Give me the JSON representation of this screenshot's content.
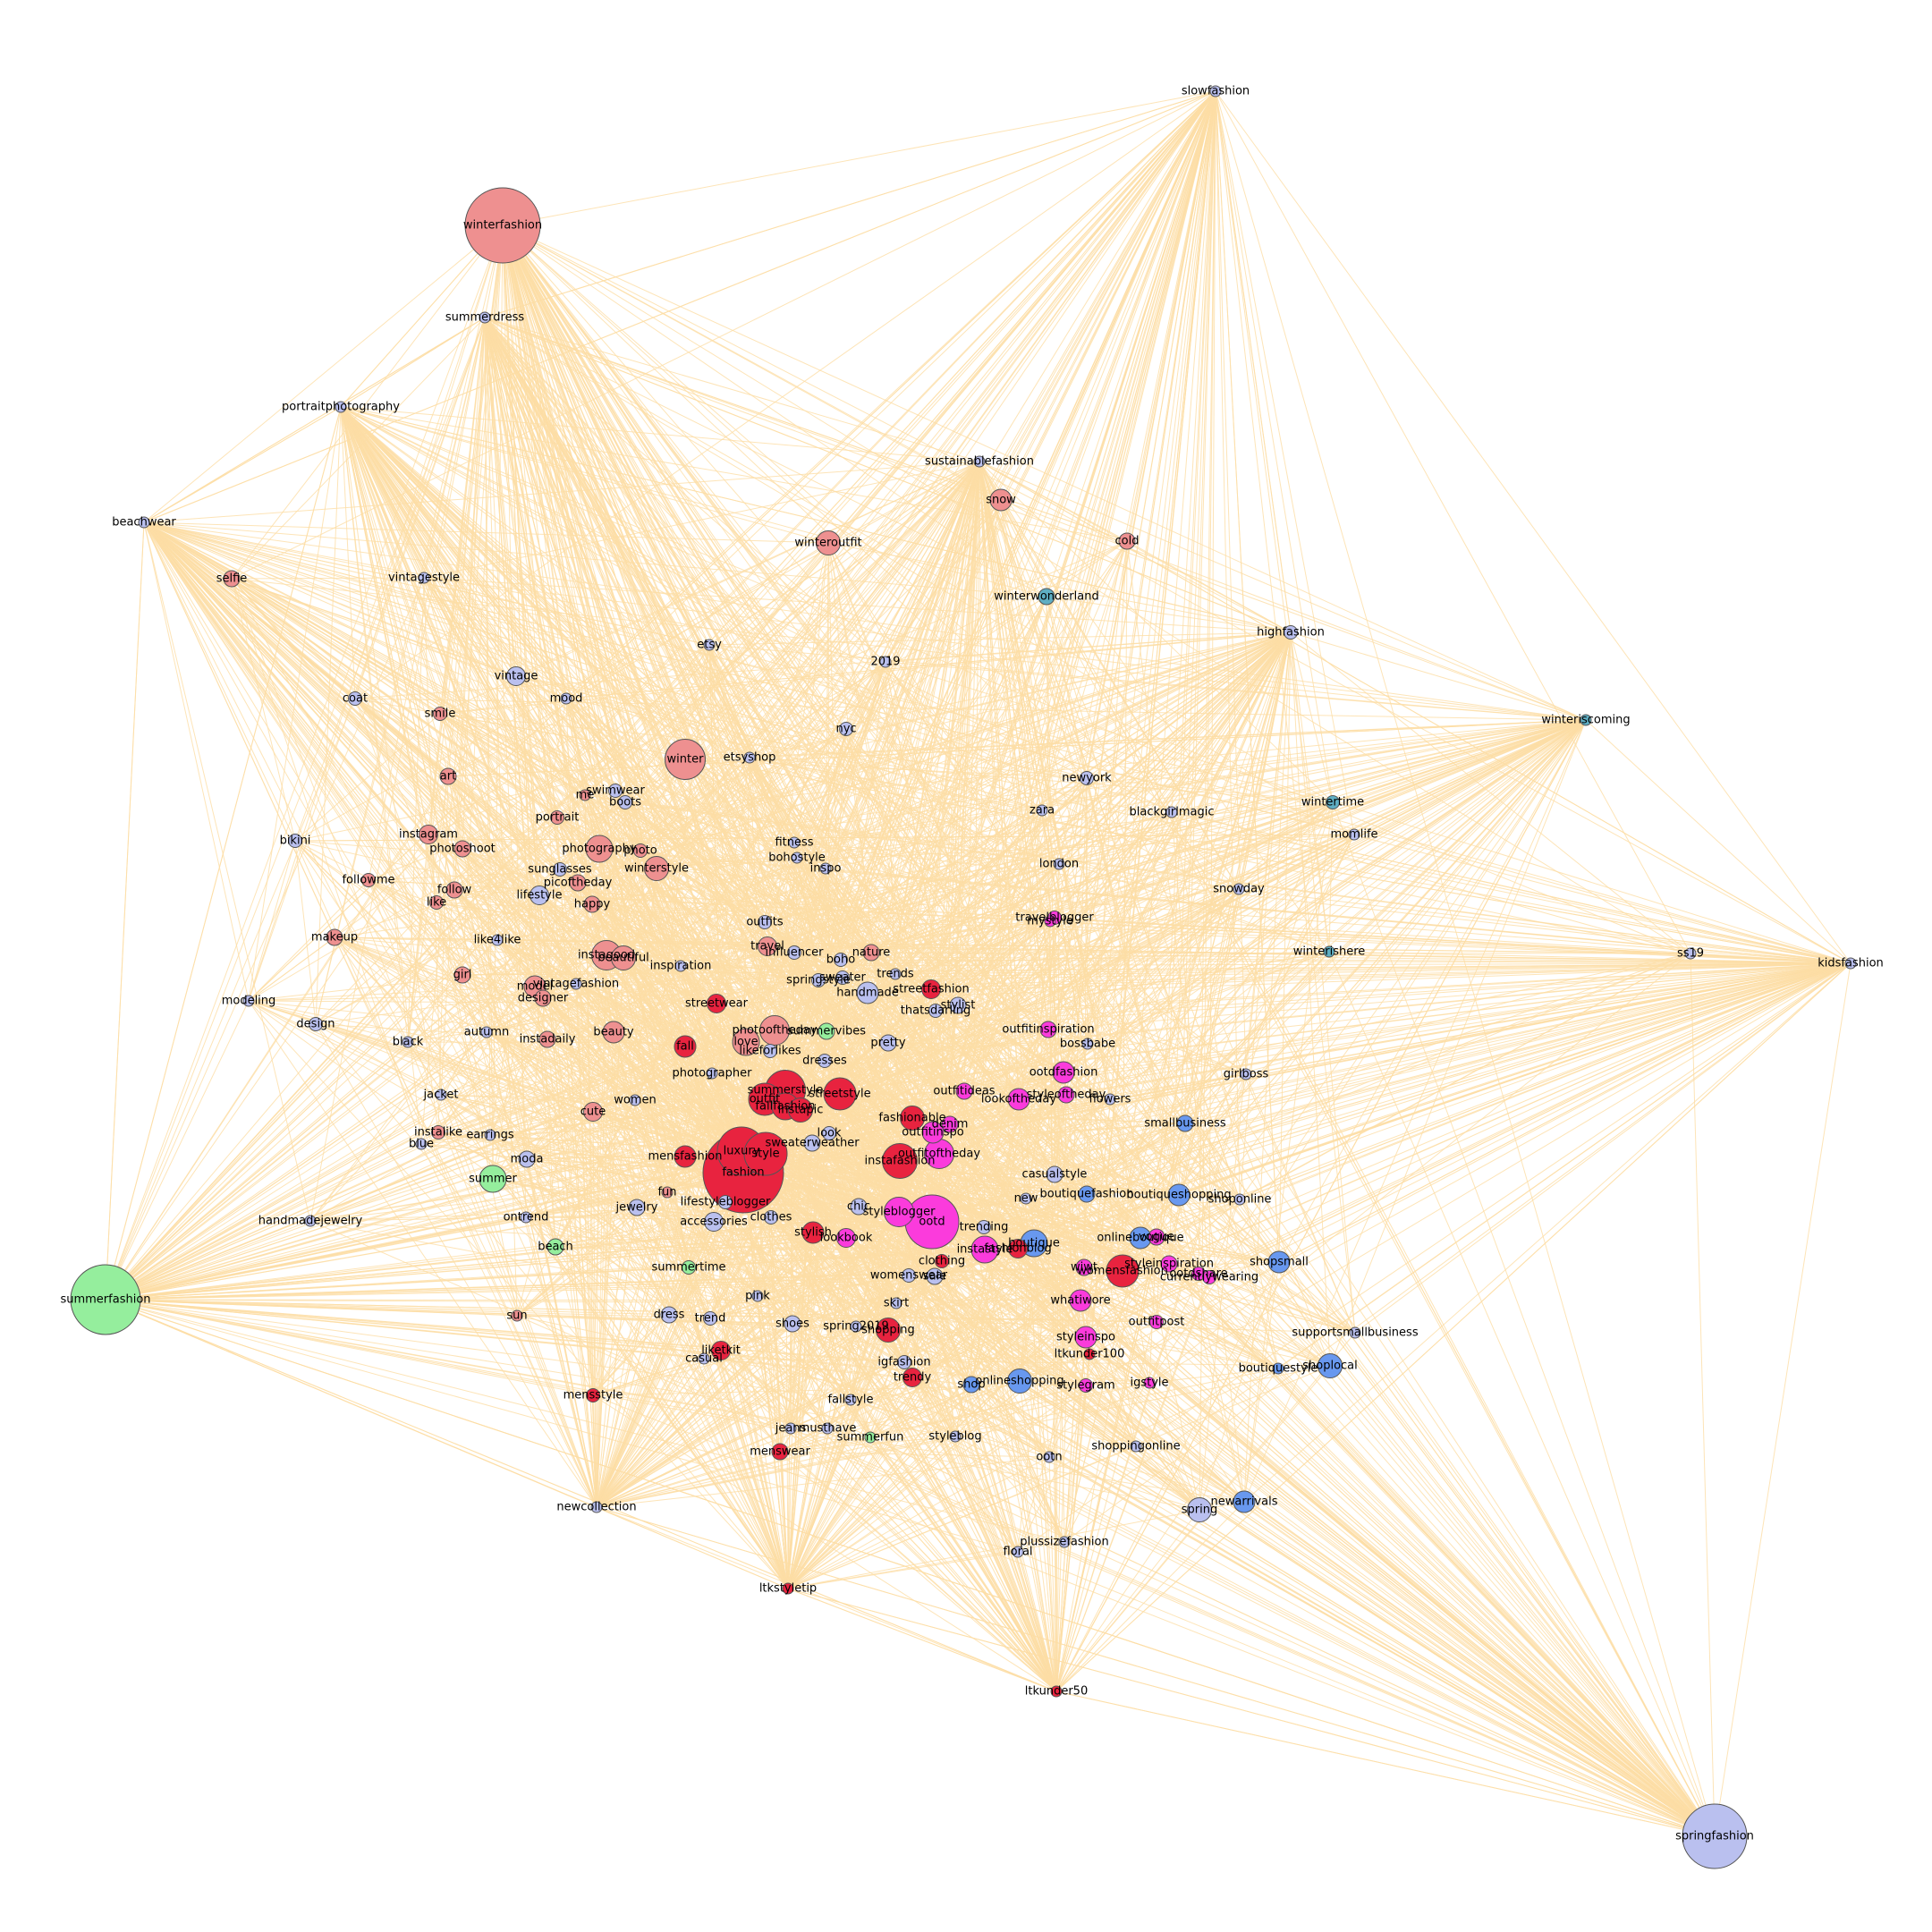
{
  "colors": {
    "edge": "#fcdda5",
    "background": "#ffffff",
    "groups": {
      "red": "#e8233f",
      "salmon": "#ee9090",
      "periwinkle": "#bac0ef",
      "green": "#95ee9d",
      "magenta": "#fb3bdc",
      "blue": "#6898ef",
      "teal": "#5eaec3"
    }
  },
  "nodes": [
    {
      "label": "winterfashion",
      "group": "salmon",
      "size": 28
    },
    {
      "label": "summerfashion",
      "group": "green",
      "size": 26
    },
    {
      "label": "springfashion",
      "group": "periwinkle",
      "size": 24
    },
    {
      "label": "slowfashion",
      "group": "periwinkle",
      "size": 4
    },
    {
      "label": "kidsfashion",
      "group": "periwinkle",
      "size": 4
    },
    {
      "label": "winteriscoming",
      "group": "teal",
      "size": 4
    },
    {
      "label": "beachwear",
      "group": "periwinkle",
      "size": 4
    },
    {
      "label": "portraitphotography",
      "group": "periwinkle",
      "size": 4
    },
    {
      "label": "summerdress",
      "group": "periwinkle",
      "size": 4
    },
    {
      "label": "sustainablefashion",
      "group": "periwinkle",
      "size": 4
    },
    {
      "label": "snow",
      "group": "salmon",
      "size": 8
    },
    {
      "label": "cold",
      "group": "salmon",
      "size": 6
    },
    {
      "label": "winteroutfit",
      "group": "salmon",
      "size": 9
    },
    {
      "label": "winterwonderland",
      "group": "teal",
      "size": 6
    },
    {
      "label": "highfashion",
      "group": "periwinkle",
      "size": 5
    },
    {
      "label": "selfie",
      "group": "salmon",
      "size": 6
    },
    {
      "label": "vintagestyle",
      "group": "periwinkle",
      "size": 4
    },
    {
      "label": "etsy",
      "group": "periwinkle",
      "size": 4
    },
    {
      "label": "2019",
      "group": "periwinkle",
      "size": 4
    },
    {
      "label": "coat",
      "group": "periwinkle",
      "size": 5
    },
    {
      "label": "vintage",
      "group": "periwinkle",
      "size": 7
    },
    {
      "label": "mood",
      "group": "periwinkle",
      "size": 4
    },
    {
      "label": "smile",
      "group": "salmon",
      "size": 5
    },
    {
      "label": "winter",
      "group": "salmon",
      "size": 15
    },
    {
      "label": "etsyshop",
      "group": "periwinkle",
      "size": 4
    },
    {
      "label": "nyc",
      "group": "periwinkle",
      "size": 5
    },
    {
      "label": "art",
      "group": "salmon",
      "size": 6
    },
    {
      "label": "me",
      "group": "salmon",
      "size": 4
    },
    {
      "label": "swimwear",
      "group": "periwinkle",
      "size": 5
    },
    {
      "label": "boots",
      "group": "periwinkle",
      "size": 5
    },
    {
      "label": "portrait",
      "group": "salmon",
      "size": 5
    },
    {
      "label": "newyork",
      "group": "periwinkle",
      "size": 5
    },
    {
      "label": "zara",
      "group": "periwinkle",
      "size": 4
    },
    {
      "label": "blackgirlmagic",
      "group": "periwinkle",
      "size": 4
    },
    {
      "label": "wintertime",
      "group": "teal",
      "size": 5
    },
    {
      "label": "momlife",
      "group": "periwinkle",
      "size": 4
    },
    {
      "label": "bikini",
      "group": "periwinkle",
      "size": 5
    },
    {
      "label": "instagram",
      "group": "salmon",
      "size": 7
    },
    {
      "label": "photoshoot",
      "group": "salmon",
      "size": 6
    },
    {
      "label": "photography",
      "group": "salmon",
      "size": 10
    },
    {
      "label": "photo",
      "group": "salmon",
      "size": 5
    },
    {
      "label": "winterstyle",
      "group": "salmon",
      "size": 9
    },
    {
      "label": "fitness",
      "group": "periwinkle",
      "size": 4
    },
    {
      "label": "bohostyle",
      "group": "periwinkle",
      "size": 4
    },
    {
      "label": "inspo",
      "group": "periwinkle",
      "size": 4
    },
    {
      "label": "london",
      "group": "periwinkle",
      "size": 4
    },
    {
      "label": "followme",
      "group": "salmon",
      "size": 5
    },
    {
      "label": "follow",
      "group": "salmon",
      "size": 6
    },
    {
      "label": "sunglasses",
      "group": "periwinkle",
      "size": 5
    },
    {
      "label": "picoftheday",
      "group": "salmon",
      "size": 6
    },
    {
      "label": "lifestyle",
      "group": "periwinkle",
      "size": 7
    },
    {
      "label": "like",
      "group": "salmon",
      "size": 5
    },
    {
      "label": "happy",
      "group": "salmon",
      "size": 6
    },
    {
      "label": "snowday",
      "group": "periwinkle",
      "size": 4
    },
    {
      "label": "outfits",
      "group": "periwinkle",
      "size": 5
    },
    {
      "label": "travelblogger",
      "group": "magenta",
      "size": 5
    },
    {
      "label": "mystyle",
      "group": "magenta",
      "size": 4
    },
    {
      "label": "makeup",
      "group": "salmon",
      "size": 6
    },
    {
      "label": "like4like",
      "group": "periwinkle",
      "size": 4
    },
    {
      "label": "travel",
      "group": "salmon",
      "size": 7
    },
    {
      "label": "influencer",
      "group": "periwinkle",
      "size": 5
    },
    {
      "label": "nature",
      "group": "salmon",
      "size": 6
    },
    {
      "label": "boho",
      "group": "periwinkle",
      "size": 5
    },
    {
      "label": "instagood",
      "group": "salmon",
      "size": 11
    },
    {
      "label": "beautiful",
      "group": "salmon",
      "size": 9
    },
    {
      "label": "winterishere",
      "group": "teal",
      "size": 4
    },
    {
      "label": "ss19",
      "group": "periwinkle",
      "size": 4
    },
    {
      "label": "girl",
      "group": "salmon",
      "size": 6
    },
    {
      "label": "vintagefashion",
      "group": "periwinkle",
      "size": 4
    },
    {
      "label": "model",
      "group": "salmon",
      "size": 8
    },
    {
      "label": "designer",
      "group": "salmon",
      "size": 6
    },
    {
      "label": "inspiration",
      "group": "periwinkle",
      "size": 4
    },
    {
      "label": "trends",
      "group": "periwinkle",
      "size": 4
    },
    {
      "label": "springstyle",
      "group": "periwinkle",
      "size": 5
    },
    {
      "label": "sweater",
      "group": "periwinkle",
      "size": 5
    },
    {
      "label": "handmade",
      "group": "periwinkle",
      "size": 8
    },
    {
      "label": "streetfashion",
      "group": "red",
      "size": 7
    },
    {
      "label": "stylist",
      "group": "periwinkle",
      "size": 6
    },
    {
      "label": "thatsdarling",
      "group": "periwinkle",
      "size": 5
    },
    {
      "label": "modeling",
      "group": "periwinkle",
      "size": 4
    },
    {
      "label": "design",
      "group": "periwinkle",
      "size": 5
    },
    {
      "label": "streetwear",
      "group": "red",
      "size": 7
    },
    {
      "label": "outfitinspiration",
      "group": "magenta",
      "size": 6
    },
    {
      "label": "autumn",
      "group": "periwinkle",
      "size": 4
    },
    {
      "label": "black",
      "group": "periwinkle",
      "size": 4
    },
    {
      "label": "instadaily",
      "group": "salmon",
      "size": 6
    },
    {
      "label": "beauty",
      "group": "salmon",
      "size": 8
    },
    {
      "label": "fall",
      "group": "red",
      "size": 8
    },
    {
      "label": "photooftheday",
      "group": "salmon",
      "size": 11
    },
    {
      "label": "love",
      "group": "salmon",
      "size": 10
    },
    {
      "label": "summervibes",
      "group": "green",
      "size": 6
    },
    {
      "label": "likeforlikes",
      "group": "periwinkle",
      "size": 5
    },
    {
      "label": "pretty",
      "group": "periwinkle",
      "size": 6
    },
    {
      "label": "bossbabe",
      "group": "periwinkle",
      "size": 4
    },
    {
      "label": "dresses",
      "group": "periwinkle",
      "size": 5
    },
    {
      "label": "photographer",
      "group": "periwinkle",
      "size": 4
    },
    {
      "label": "ootdfashion",
      "group": "magenta",
      "size": 8
    },
    {
      "label": "girlboss",
      "group": "periwinkle",
      "size": 4
    },
    {
      "label": "jacket",
      "group": "periwinkle",
      "size": 4
    },
    {
      "label": "summerstyle",
      "group": "red",
      "size": 15
    },
    {
      "label": "outfit",
      "group": "red",
      "size": 12
    },
    {
      "label": "streetstyle",
      "group": "red",
      "size": 12
    },
    {
      "label": "fallfashion",
      "group": "red",
      "size": 10
    },
    {
      "label": "instapic",
      "group": "red",
      "size": 9
    },
    {
      "label": "women",
      "group": "periwinkle",
      "size": 4
    },
    {
      "label": "cute",
      "group": "salmon",
      "size": 7
    },
    {
      "label": "outfitideas",
      "group": "magenta",
      "size": 6
    },
    {
      "label": "lookoftheday",
      "group": "magenta",
      "size": 8
    },
    {
      "label": "styleoftheday",
      "group": "magenta",
      "size": 6
    },
    {
      "label": "flowers",
      "group": "periwinkle",
      "size": 4
    },
    {
      "label": "fashionable",
      "group": "red",
      "size": 9
    },
    {
      "label": "denim",
      "group": "magenta",
      "size": 6
    },
    {
      "label": "outfitinspo",
      "group": "magenta",
      "size": 8
    },
    {
      "label": "instalike",
      "group": "salmon",
      "size": 5
    },
    {
      "label": "earrings",
      "group": "periwinkle",
      "size": 4
    },
    {
      "label": "blue",
      "group": "periwinkle",
      "size": 4
    },
    {
      "label": "luxury",
      "group": "red",
      "size": 18
    },
    {
      "label": "style",
      "group": "red",
      "size": 16
    },
    {
      "label": "sweaterweather",
      "group": "periwinkle",
      "size": 6
    },
    {
      "label": "look",
      "group": "periwinkle",
      "size": 5
    },
    {
      "label": "mensfashion",
      "group": "red",
      "size": 8
    },
    {
      "label": "smallbusiness",
      "group": "blue",
      "size": 6
    },
    {
      "label": "moda",
      "group": "periwinkle",
      "size": 6
    },
    {
      "label": "fashion",
      "group": "red",
      "size": 30
    },
    {
      "label": "outfitoftheday",
      "group": "magenta",
      "size": 11
    },
    {
      "label": "instafashion",
      "group": "red",
      "size": 13
    },
    {
      "label": "summer",
      "group": "green",
      "size": 10
    },
    {
      "label": "casualstyle",
      "group": "periwinkle",
      "size": 6
    },
    {
      "label": "fun",
      "group": "salmon",
      "size": 4
    },
    {
      "label": "lifestyleblogger",
      "group": "periwinkle",
      "size": 5
    },
    {
      "label": "new",
      "group": "periwinkle",
      "size": 4
    },
    {
      "label": "boutiquefashion",
      "group": "blue",
      "size": 6
    },
    {
      "label": "boutiqueshopping",
      "group": "blue",
      "size": 8
    },
    {
      "label": "shoponline",
      "group": "periwinkle",
      "size": 4
    },
    {
      "label": "handmadejewelry",
      "group": "periwinkle",
      "size": 4
    },
    {
      "label": "ontrend",
      "group": "periwinkle",
      "size": 4
    },
    {
      "label": "jewelry",
      "group": "periwinkle",
      "size": 6
    },
    {
      "label": "chic",
      "group": "periwinkle",
      "size": 6
    },
    {
      "label": "styleblogger",
      "group": "magenta",
      "size": 11
    },
    {
      "label": "ootd",
      "group": "magenta",
      "size": 20
    },
    {
      "label": "accessories",
      "group": "periwinkle",
      "size": 7
    },
    {
      "label": "clothes",
      "group": "periwinkle",
      "size": 5
    },
    {
      "label": "trending",
      "group": "periwinkle",
      "size": 5
    },
    {
      "label": "beach",
      "group": "green",
      "size": 6
    },
    {
      "label": "stylish",
      "group": "red",
      "size": 8
    },
    {
      "label": "lookbook",
      "group": "magenta",
      "size": 7
    },
    {
      "label": "fashionblog",
      "group": "red",
      "size": 7
    },
    {
      "label": "instastyle",
      "group": "magenta",
      "size": 10
    },
    {
      "label": "boutique",
      "group": "blue",
      "size": 10
    },
    {
      "label": "onlineboutique",
      "group": "blue",
      "size": 8
    },
    {
      "label": "vogue",
      "group": "magenta",
      "size": 6
    },
    {
      "label": "clothing",
      "group": "red",
      "size": 5
    },
    {
      "label": "summertime",
      "group": "green",
      "size": 5
    },
    {
      "label": "womenswear",
      "group": "periwinkle",
      "size": 5
    },
    {
      "label": "sale",
      "group": "periwinkle",
      "size": 6
    },
    {
      "label": "wiwt",
      "group": "magenta",
      "size": 6
    },
    {
      "label": "womensfashion",
      "group": "red",
      "size": 12
    },
    {
      "label": "styleinspiration",
      "group": "magenta",
      "size": 6
    },
    {
      "label": "ootdshare",
      "group": "magenta",
      "size": 5
    },
    {
      "label": "currentlywearing",
      "group": "magenta",
      "size": 5
    },
    {
      "label": "shopsmall",
      "group": "blue",
      "size": 8
    },
    {
      "label": "pink",
      "group": "periwinkle",
      "size": 4
    },
    {
      "label": "skirt",
      "group": "periwinkle",
      "size": 4
    },
    {
      "label": "whatiwore",
      "group": "magenta",
      "size": 8
    },
    {
      "label": "dress",
      "group": "periwinkle",
      "size": 6
    },
    {
      "label": "trend",
      "group": "periwinkle",
      "size": 5
    },
    {
      "label": "shoes",
      "group": "periwinkle",
      "size": 6
    },
    {
      "label": "spring2019",
      "group": "periwinkle",
      "size": 4
    },
    {
      "label": "shopping",
      "group": "red",
      "size": 9
    },
    {
      "label": "outfitpost",
      "group": "magenta",
      "size": 5
    },
    {
      "label": "sun",
      "group": "salmon",
      "size": 4
    },
    {
      "label": "styleinspo",
      "group": "magenta",
      "size": 8
    },
    {
      "label": "supportsmallbusiness",
      "group": "periwinkle",
      "size": 4
    },
    {
      "label": "liketkit",
      "group": "red",
      "size": 7
    },
    {
      "label": "casual",
      "group": "periwinkle",
      "size": 4
    },
    {
      "label": "igfashion",
      "group": "periwinkle",
      "size": 5
    },
    {
      "label": "ltkunder100",
      "group": "red",
      "size": 4
    },
    {
      "label": "trendy",
      "group": "red",
      "size": 7
    },
    {
      "label": "shop",
      "group": "blue",
      "size": 6
    },
    {
      "label": "onlineshopping",
      "group": "blue",
      "size": 9
    },
    {
      "label": "stylegram",
      "group": "magenta",
      "size": 5
    },
    {
      "label": "igstyle",
      "group": "magenta",
      "size": 4
    },
    {
      "label": "boutiquestyle",
      "group": "blue",
      "size": 4
    },
    {
      "label": "shoplocal",
      "group": "blue",
      "size": 9
    },
    {
      "label": "mensstyle",
      "group": "red",
      "size": 5
    },
    {
      "label": "fallstyle",
      "group": "periwinkle",
      "size": 4
    },
    {
      "label": "jeans",
      "group": "periwinkle",
      "size": 4
    },
    {
      "label": "musthave",
      "group": "periwinkle",
      "size": 4
    },
    {
      "label": "summerfun",
      "group": "green",
      "size": 4
    },
    {
      "label": "styleblog",
      "group": "periwinkle",
      "size": 4
    },
    {
      "label": "menswear",
      "group": "red",
      "size": 6
    },
    {
      "label": "ootn",
      "group": "periwinkle",
      "size": 4
    },
    {
      "label": "shoppingonline",
      "group": "periwinkle",
      "size": 4
    },
    {
      "label": "newcollection",
      "group": "periwinkle",
      "size": 4
    },
    {
      "label": "spring",
      "group": "periwinkle",
      "size": 9
    },
    {
      "label": "newarrivals",
      "group": "blue",
      "size": 8
    },
    {
      "label": "plussizefashion",
      "group": "periwinkle",
      "size": 4
    },
    {
      "label": "floral",
      "group": "periwinkle",
      "size": 4
    },
    {
      "label": "ltkstyletip",
      "group": "red",
      "size": 4
    },
    {
      "label": "ltkunder50",
      "group": "red",
      "size": 4
    }
  ]
}
